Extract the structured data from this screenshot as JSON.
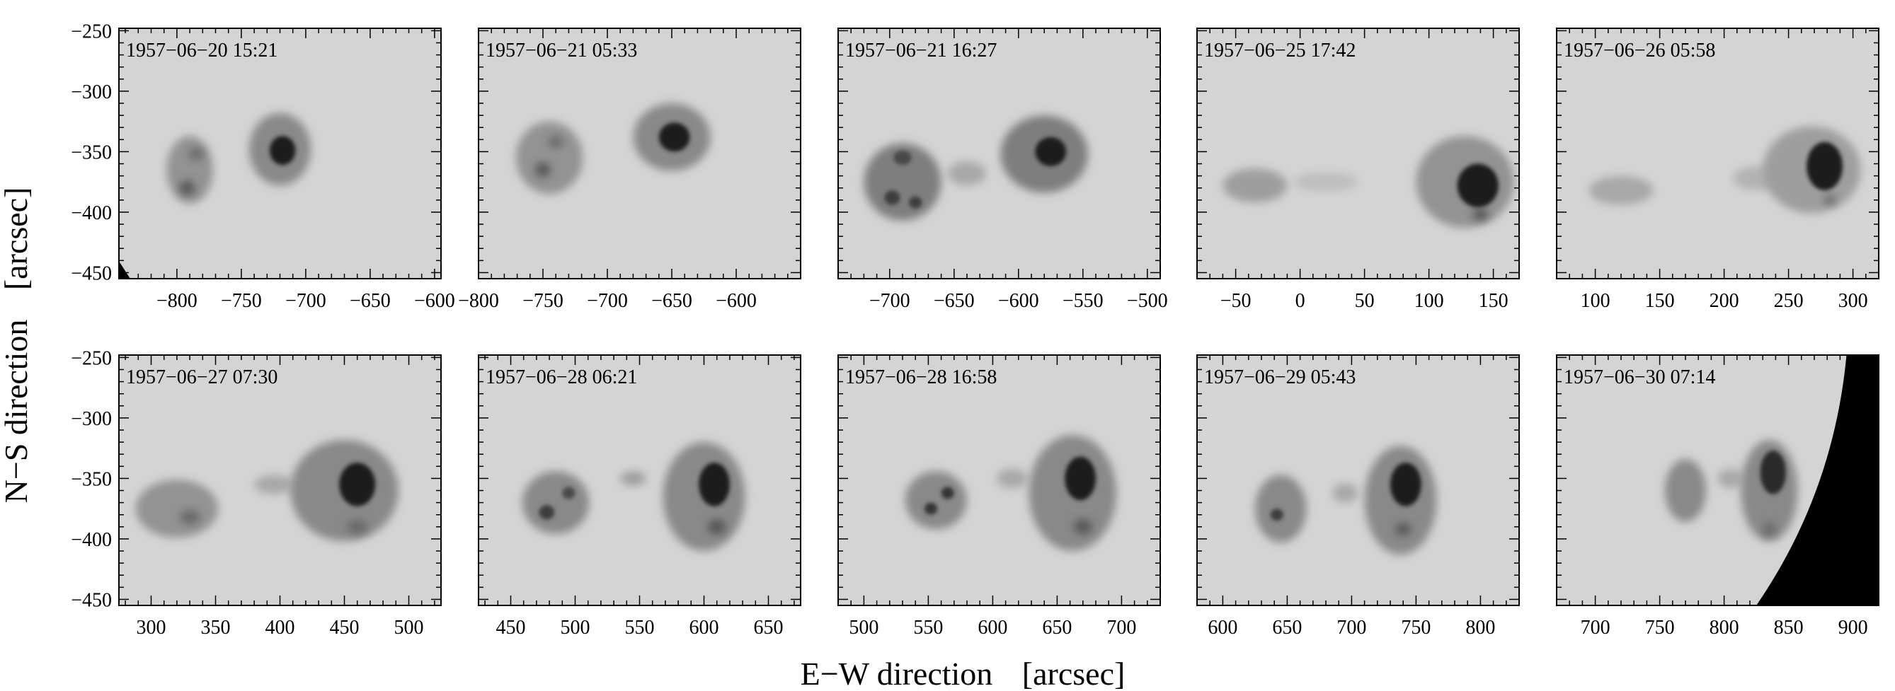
{
  "figure": {
    "x_title": "E−W direction",
    "x_unit": "[arcsec]",
    "y_title": "N−S direction",
    "y_unit": "[arcsec]"
  },
  "y_ticks": [
    "−250",
    "−300",
    "−350",
    "−400",
    "−450"
  ],
  "y_tick_values": [
    -250,
    -300,
    -350,
    -400,
    -450
  ],
  "background_color": "#d4d4d4",
  "panels": [
    {
      "timestamp": "1957−06−20 15:21",
      "x_range": [
        -845,
        -595
      ],
      "x_ticks": [
        -800,
        -750,
        -700,
        -650,
        -600
      ],
      "x_tick_labels": [
        "−800",
        "−750",
        "−700",
        "−650",
        "−600"
      ],
      "spots": [
        {
          "x": -718,
          "y": -349,
          "rx": 10,
          "ry": 12,
          "darkness": 0.95
        },
        {
          "x": -720,
          "y": -348,
          "rx": 24,
          "ry": 30,
          "darkness": 0.45
        },
        {
          "x": -790,
          "y": -365,
          "rx": 18,
          "ry": 28,
          "darkness": 0.4
        },
        {
          "x": -792,
          "y": -380,
          "rx": 6,
          "ry": 6,
          "darkness": 0.7
        },
        {
          "x": -785,
          "y": -352,
          "rx": 6,
          "ry": 5,
          "darkness": 0.6
        }
      ],
      "limb": [
        [
          0,
          0.93
        ],
        [
          0.035,
          1
        ],
        [
          0,
          1
        ]
      ]
    },
    {
      "timestamp": "1957−06−21 05:33",
      "x_range": [
        -800,
        -550
      ],
      "x_ticks": [
        -800,
        -750,
        -700,
        -650,
        -600
      ],
      "x_tick_labels": [
        "−800",
        "−750",
        "−700",
        "−650",
        "−600"
      ],
      "spots": [
        {
          "x": -648,
          "y": -338,
          "rx": 12,
          "ry": 12,
          "darkness": 0.95
        },
        {
          "x": -650,
          "y": -338,
          "rx": 30,
          "ry": 28,
          "darkness": 0.45
        },
        {
          "x": -745,
          "y": -355,
          "rx": 26,
          "ry": 30,
          "darkness": 0.4
        },
        {
          "x": -750,
          "y": -365,
          "rx": 6,
          "ry": 6,
          "darkness": 0.7
        },
        {
          "x": -740,
          "y": -342,
          "rx": 6,
          "ry": 5,
          "darkness": 0.6
        }
      ],
      "limb": []
    },
    {
      "timestamp": "1957−06−21 16:27",
      "x_range": [
        -740,
        -490
      ],
      "x_ticks": [
        -700,
        -650,
        -600,
        -550,
        -500
      ],
      "x_tick_labels": [
        "−700",
        "−650",
        "−600",
        "−550",
        "−500"
      ],
      "spots": [
        {
          "x": -575,
          "y": -350,
          "rx": 12,
          "ry": 12,
          "darkness": 0.95
        },
        {
          "x": -580,
          "y": -352,
          "rx": 34,
          "ry": 32,
          "darkness": 0.5
        },
        {
          "x": -690,
          "y": -375,
          "rx": 30,
          "ry": 32,
          "darkness": 0.5
        },
        {
          "x": -698,
          "y": -388,
          "rx": 6,
          "ry": 6,
          "darkness": 0.8
        },
        {
          "x": -680,
          "y": -392,
          "rx": 5,
          "ry": 5,
          "darkness": 0.8
        },
        {
          "x": -690,
          "y": -355,
          "rx": 7,
          "ry": 6,
          "darkness": 0.75
        },
        {
          "x": -640,
          "y": -368,
          "rx": 15,
          "ry": 10,
          "darkness": 0.3
        }
      ],
      "limb": []
    },
    {
      "timestamp": "1957−06−25 17:42",
      "x_range": [
        -80,
        170
      ],
      "x_ticks": [
        -50,
        0,
        50,
        100,
        150
      ],
      "x_tick_labels": [
        "−50",
        "0",
        "50",
        "100",
        "150"
      ],
      "spots": [
        {
          "x": 138,
          "y": -378,
          "rx": 16,
          "ry": 18,
          "darkness": 0.95
        },
        {
          "x": 128,
          "y": -375,
          "rx": 38,
          "ry": 38,
          "darkness": 0.4
        },
        {
          "x": -35,
          "y": -378,
          "rx": 25,
          "ry": 14,
          "darkness": 0.35
        },
        {
          "x": 20,
          "y": -375,
          "rx": 25,
          "ry": 8,
          "darkness": 0.2
        },
        {
          "x": 140,
          "y": -402,
          "rx": 6,
          "ry": 5,
          "darkness": 0.7
        }
      ],
      "limb": []
    },
    {
      "timestamp": "1957−06−26 05:58",
      "x_range": [
        70,
        320
      ],
      "x_ticks": [
        100,
        150,
        200,
        250,
        300
      ],
      "x_tick_labels": [
        "100",
        "150",
        "200",
        "250",
        "300"
      ],
      "spots": [
        {
          "x": 278,
          "y": -362,
          "rx": 14,
          "ry": 20,
          "darkness": 0.95
        },
        {
          "x": 268,
          "y": -365,
          "rx": 38,
          "ry": 36,
          "darkness": 0.35
        },
        {
          "x": 120,
          "y": -382,
          "rx": 25,
          "ry": 12,
          "darkness": 0.3
        },
        {
          "x": 225,
          "y": -372,
          "rx": 18,
          "ry": 10,
          "darkness": 0.25
        },
        {
          "x": 282,
          "y": -390,
          "rx": 5,
          "ry": 4,
          "darkness": 0.6
        }
      ],
      "limb": []
    },
    {
      "timestamp": "1957−06−27 07:30",
      "x_range": [
        275,
        525
      ],
      "x_ticks": [
        300,
        350,
        400,
        450,
        500
      ],
      "x_tick_labels": [
        "300",
        "350",
        "400",
        "450",
        "500"
      ],
      "spots": [
        {
          "x": 460,
          "y": -355,
          "rx": 14,
          "ry": 18,
          "darkness": 0.95
        },
        {
          "x": 450,
          "y": -360,
          "rx": 42,
          "ry": 42,
          "darkness": 0.45
        },
        {
          "x": 320,
          "y": -375,
          "rx": 32,
          "ry": 24,
          "darkness": 0.4
        },
        {
          "x": 330,
          "y": -382,
          "rx": 8,
          "ry": 6,
          "darkness": 0.6
        },
        {
          "x": 395,
          "y": -355,
          "rx": 15,
          "ry": 8,
          "darkness": 0.3
        },
        {
          "x": 460,
          "y": -390,
          "rx": 8,
          "ry": 6,
          "darkness": 0.6
        }
      ],
      "limb": []
    },
    {
      "timestamp": "1957−06−28 06:21",
      "x_range": [
        425,
        675
      ],
      "x_ticks": [
        450,
        500,
        550,
        600,
        650
      ],
      "x_tick_labels": [
        "450",
        "500",
        "550",
        "600",
        "650"
      ],
      "spots": [
        {
          "x": 608,
          "y": -355,
          "rx": 12,
          "ry": 18,
          "darkness": 0.95
        },
        {
          "x": 600,
          "y": -365,
          "rx": 32,
          "ry": 45,
          "darkness": 0.45
        },
        {
          "x": 485,
          "y": -370,
          "rx": 26,
          "ry": 26,
          "darkness": 0.45
        },
        {
          "x": 478,
          "y": -378,
          "rx": 6,
          "ry": 6,
          "darkness": 0.8
        },
        {
          "x": 495,
          "y": -362,
          "rx": 5,
          "ry": 5,
          "darkness": 0.75
        },
        {
          "x": 545,
          "y": -350,
          "rx": 10,
          "ry": 6,
          "darkness": 0.35
        },
        {
          "x": 610,
          "y": -390,
          "rx": 7,
          "ry": 6,
          "darkness": 0.7
        }
      ],
      "limb": []
    },
    {
      "timestamp": "1957−06−28 16:58",
      "x_range": [
        480,
        730
      ],
      "x_ticks": [
        500,
        550,
        600,
        650,
        700
      ],
      "x_tick_labels": [
        "500",
        "550",
        "600",
        "650",
        "700"
      ],
      "spots": [
        {
          "x": 668,
          "y": -350,
          "rx": 12,
          "ry": 18,
          "darkness": 0.95
        },
        {
          "x": 662,
          "y": -362,
          "rx": 34,
          "ry": 48,
          "darkness": 0.45
        },
        {
          "x": 556,
          "y": -368,
          "rx": 24,
          "ry": 24,
          "darkness": 0.45
        },
        {
          "x": 552,
          "y": -375,
          "rx": 5,
          "ry": 5,
          "darkness": 0.85
        },
        {
          "x": 565,
          "y": -362,
          "rx": 5,
          "ry": 5,
          "darkness": 0.85
        },
        {
          "x": 615,
          "y": -350,
          "rx": 12,
          "ry": 8,
          "darkness": 0.3
        },
        {
          "x": 670,
          "y": -390,
          "rx": 7,
          "ry": 6,
          "darkness": 0.7
        }
      ],
      "limb": []
    },
    {
      "timestamp": "1957−06−29 05:43",
      "x_range": [
        580,
        830
      ],
      "x_ticks": [
        600,
        650,
        700,
        750,
        800
      ],
      "x_tick_labels": [
        "600",
        "650",
        "700",
        "750",
        "800"
      ],
      "spots": [
        {
          "x": 742,
          "y": -355,
          "rx": 12,
          "ry": 18,
          "darkness": 0.95
        },
        {
          "x": 738,
          "y": -368,
          "rx": 28,
          "ry": 45,
          "darkness": 0.45
        },
        {
          "x": 645,
          "y": -375,
          "rx": 20,
          "ry": 28,
          "darkness": 0.45
        },
        {
          "x": 642,
          "y": -380,
          "rx": 5,
          "ry": 5,
          "darkness": 0.8
        },
        {
          "x": 695,
          "y": -362,
          "rx": 10,
          "ry": 8,
          "darkness": 0.3
        },
        {
          "x": 740,
          "y": -392,
          "rx": 6,
          "ry": 5,
          "darkness": 0.7
        }
      ],
      "limb": []
    },
    {
      "timestamp": "1957−06−30 07:14",
      "x_range": [
        670,
        920
      ],
      "x_ticks": [
        700,
        750,
        800,
        850,
        900
      ],
      "x_tick_labels": [
        "700",
        "750",
        "800",
        "850",
        "900"
      ],
      "spots": [
        {
          "x": 838,
          "y": -345,
          "rx": 10,
          "ry": 18,
          "darkness": 0.9
        },
        {
          "x": 835,
          "y": -360,
          "rx": 22,
          "ry": 42,
          "darkness": 0.45
        },
        {
          "x": 770,
          "y": -360,
          "rx": 16,
          "ry": 26,
          "darkness": 0.45
        },
        {
          "x": 805,
          "y": -350,
          "rx": 10,
          "ry": 8,
          "darkness": 0.3
        },
        {
          "x": 835,
          "y": -392,
          "rx": 5,
          "ry": 6,
          "darkness": 0.6
        }
      ],
      "limb": [
        [
          0.9,
          0
        ],
        [
          1,
          0
        ],
        [
          1,
          1
        ],
        [
          0.62,
          1
        ]
      ]
    }
  ]
}
